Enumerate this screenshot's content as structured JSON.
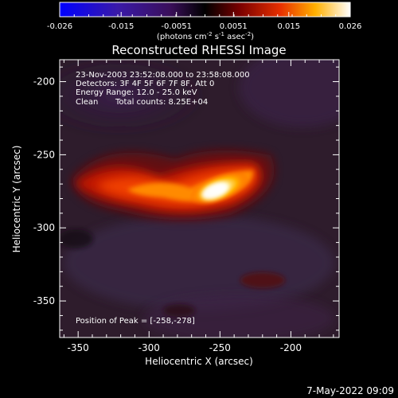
{
  "colorbar": {
    "ticks": [
      "-0.026",
      "-0.015",
      "-0.0051",
      "0.0051",
      "0.015",
      "0.026"
    ],
    "units_main": "(photons cm",
    "units_sup1": "-2",
    "units_mid": " s",
    "units_sup2": "-1",
    "units_tail": " asec",
    "units_sup3": "-2",
    "units_close": ")",
    "range": [
      -0.026,
      0.026
    ]
  },
  "chart_data": {
    "type": "heatmap",
    "title": "Reconstructed RHESSI Image",
    "xlabel": "Heliocentric X (arcsec)",
    "ylabel": "Heliocentric Y (arcsec)",
    "xlim": [
      -363,
      -166
    ],
    "ylim": [
      -375,
      -185
    ],
    "xticks": [
      "-350",
      "-300",
      "-250",
      "-200"
    ],
    "yticks": [
      "-200",
      "-250",
      "-300",
      "-350"
    ],
    "xtick_values": [
      -350,
      -300,
      -250,
      -200
    ],
    "ytick_values": [
      -200,
      -250,
      -300,
      -350
    ],
    "colormap": "RHESSI red-temperature (blue-purple-black-red-yellow-white)",
    "source": {
      "peak": [
        -258,
        -278
      ],
      "peak_value": 0.026,
      "shape": "elongated arc, brightest at peak, tails to lower-left and upper-right"
    },
    "annotations": [
      "23-Nov-2003 23:52:08.000 to 23:58:08.000",
      "Detectors: 3F 4F 5F 6F 7F 8F, Att 0",
      "Energy Range: 12.0 - 25.0 keV",
      "Clean",
      "Total counts: 8.25E+04",
      "Position of Peak = [-258,-278]"
    ]
  },
  "footer": {
    "date": "7-May-2022 09:09"
  }
}
